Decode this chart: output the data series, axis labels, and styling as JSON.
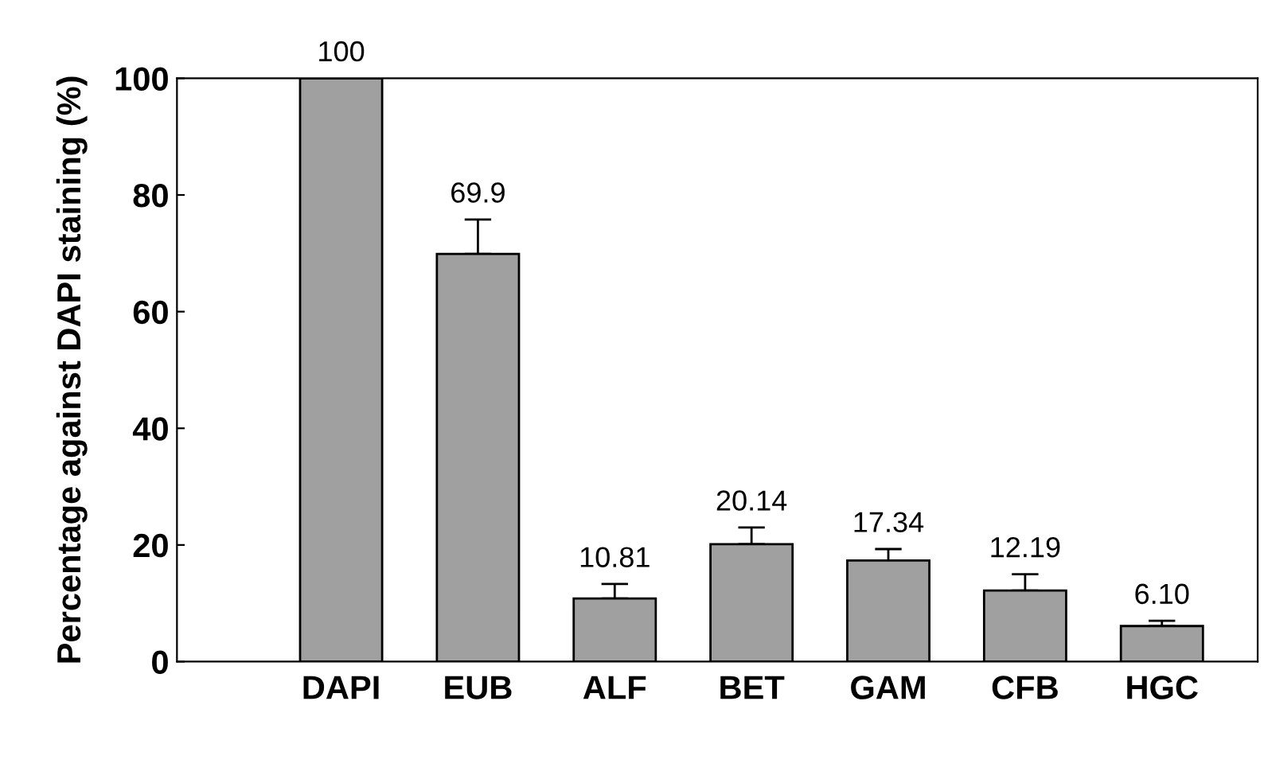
{
  "chart_data": {
    "type": "bar",
    "ylabel": "Percentage against DAPI staining (%)",
    "categories": [
      "DAPI",
      "EUB",
      "ALF",
      "BET",
      "GAM",
      "CFB",
      "HGC"
    ],
    "values": [
      100,
      69.9,
      10.81,
      20.14,
      17.34,
      12.19,
      6.1
    ],
    "value_labels": [
      "100",
      "69.9",
      "10.81",
      "20.14",
      "17.34",
      "12.19",
      "6.10"
    ],
    "errors": [
      null,
      [
        69.9,
        75.8
      ],
      [
        10.81,
        13.3
      ],
      [
        20.14,
        23.0
      ],
      [
        17.34,
        19.3
      ],
      [
        12.19,
        15.0
      ],
      [
        6.1,
        7.0
      ]
    ],
    "color": "#a0a0a0",
    "ylim": [
      0,
      100
    ],
    "yticks": [
      0,
      20,
      40,
      60,
      80,
      100
    ],
    "grid": false
  }
}
